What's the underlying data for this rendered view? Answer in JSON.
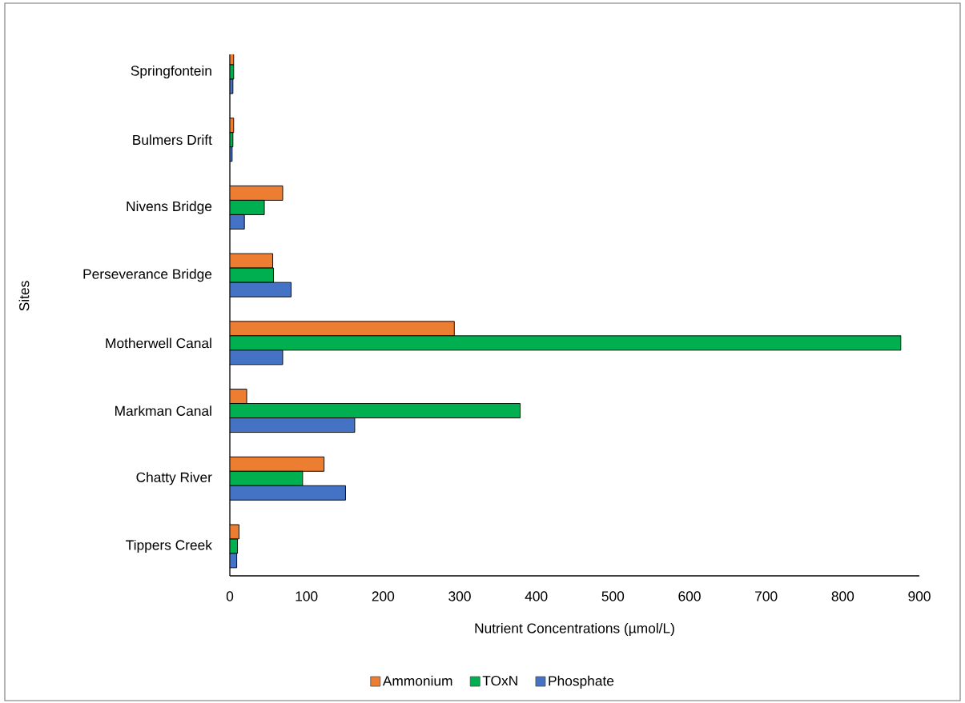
{
  "chart_data": {
    "type": "bar",
    "orientation": "horizontal",
    "xlabel": "Nutrient Concentrations (µmol/L)",
    "ylabel": "Sites",
    "categories": [
      "Springfontein",
      "Bulmers Drift",
      "Nivens Bridge",
      "Perseverance Bridge",
      "Motherwell Canal",
      "Markman Canal",
      "Chatty River",
      "Tippers Creek"
    ],
    "series": [
      {
        "name": "Ammonium",
        "color": "#ed7d31",
        "values": [
          5,
          5,
          69,
          56,
          293,
          22,
          123,
          12
        ]
      },
      {
        "name": "TOxN",
        "color": "#00b050",
        "values": [
          5,
          4,
          45,
          57,
          876,
          379,
          95,
          10
        ]
      },
      {
        "name": "Phosphate",
        "color": "#4472c4",
        "values": [
          4,
          3,
          19,
          80,
          69,
          163,
          151,
          9
        ]
      }
    ],
    "xlim": [
      0,
      900
    ],
    "xticks": [
      0,
      100,
      200,
      300,
      400,
      500,
      600,
      700,
      800,
      900
    ],
    "legend": "bottom"
  }
}
